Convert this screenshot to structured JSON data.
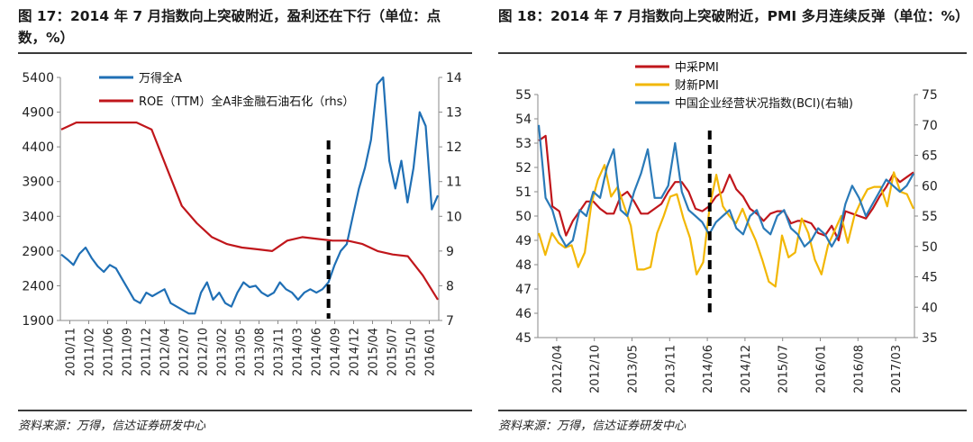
{
  "charts": [
    {
      "figure_title": "图 17：2014 年 7 月指数向上突破附近，盈利还在下行（单位：点数，%）",
      "source": "资料来源：万得，信达证券研发中心"
    },
    {
      "figure_title": "图 18：2014 年 7 月指数向上突破附近，PMI 多月连续反弹（单位：%）",
      "source": "资料来源：万得，信达证券研发中心"
    }
  ],
  "chart_data": [
    {
      "type": "line",
      "x_tick_labels": [
        "2010/11",
        "2011/02",
        "2011/06",
        "2011/09",
        "2011/12",
        "2012/04",
        "2012/07",
        "2012/10",
        "2013/02",
        "2013/05",
        "2013/08",
        "2013/11",
        "2014/03",
        "2014/06",
        "2014/09",
        "2014/12",
        "2015/04",
        "2015/07",
        "2015/10",
        "2016/01"
      ],
      "y_left": {
        "ticks": [
          1900,
          2400,
          2900,
          3400,
          3900,
          4400,
          4900,
          5400
        ],
        "range": [
          1900,
          5400
        ]
      },
      "y_right": {
        "ticks": [
          7,
          8,
          9,
          10,
          11,
          12,
          13,
          14
        ],
        "range": [
          7,
          14
        ]
      },
      "grid": false,
      "legend_position": "top-left",
      "vertical_marker": {
        "x_index": 44,
        "style": "dashed-black"
      },
      "series": [
        {
          "name": "万得全A",
          "axis": "left",
          "color": "#1f6fb5",
          "values": [
            2850,
            2780,
            2700,
            2860,
            2950,
            2800,
            2680,
            2600,
            2700,
            2650,
            2500,
            2350,
            2200,
            2150,
            2300,
            2250,
            2300,
            2350,
            2150,
            2100,
            2050,
            2000,
            2000,
            2300,
            2450,
            2200,
            2300,
            2150,
            2100,
            2300,
            2450,
            2380,
            2400,
            2300,
            2250,
            2300,
            2450,
            2350,
            2300,
            2200,
            2300,
            2350,
            2300,
            2350,
            2450,
            2700,
            2900,
            3000,
            3400,
            3800,
            4100,
            4500,
            5300,
            5400,
            4200,
            3800,
            4200,
            3600,
            4100,
            4900,
            4700,
            3500,
            3700
          ]
        },
        {
          "name": "ROE（TTM）全A非金融石油石化（rhs）",
          "axis": "right",
          "color": "#c0161b",
          "values": [
            12.5,
            12.7,
            12.7,
            12.7,
            12.7,
            12.7,
            12.5,
            11.4,
            10.3,
            9.8,
            9.4,
            9.2,
            9.1,
            9.05,
            9.0,
            9.3,
            9.4,
            9.35,
            9.3,
            9.3,
            9.2,
            9.0,
            8.9,
            8.85,
            8.3,
            7.6
          ]
        }
      ]
    },
    {
      "type": "line",
      "x_tick_labels": [
        "2012/04",
        "2012/10",
        "2013/05",
        "2013/11",
        "2014/06",
        "2014/12",
        "2015/07",
        "2016/01",
        "2016/08",
        "2017/03"
      ],
      "y_left": {
        "ticks": [
          45,
          46,
          47,
          48,
          49,
          50,
          51,
          52,
          53,
          54,
          55
        ],
        "range": [
          45,
          55
        ]
      },
      "y_right": {
        "ticks": [
          35,
          40,
          45,
          50,
          55,
          60,
          65,
          70,
          75
        ],
        "range": [
          35,
          75
        ]
      },
      "grid": false,
      "legend_position": "top",
      "vertical_marker": {
        "x_index": 26,
        "style": "dashed-black"
      },
      "series": [
        {
          "name": "中采PMI",
          "axis": "left",
          "color": "#c0161b",
          "values": [
            53.1,
            53.3,
            50.4,
            50.2,
            49.2,
            49.8,
            50.2,
            50.6,
            50.6,
            50.3,
            50.1,
            50.1,
            50.8,
            51.0,
            50.6,
            50.1,
            50.1,
            50.3,
            50.5,
            51.0,
            51.4,
            51.4,
            51.0,
            50.3,
            50.2,
            50.4,
            50.8,
            51.0,
            51.7,
            51.1,
            50.8,
            50.3,
            50.1,
            49.8,
            50.1,
            50.2,
            50.2,
            49.7,
            49.8,
            49.8,
            49.7,
            49.3,
            49.2,
            49.6,
            49.0,
            50.2,
            50.1,
            50.0,
            49.9,
            50.3,
            50.8,
            51.2,
            51.7,
            51.4,
            51.6,
            51.8
          ]
        },
        {
          "name": "财新PMI",
          "axis": "left",
          "color": "#f2b705",
          "values": [
            49.3,
            48.4,
            49.3,
            48.9,
            48.7,
            48.8,
            47.9,
            48.5,
            50.5,
            51.5,
            52.1,
            50.8,
            51.2,
            50.4,
            49.6,
            47.8,
            47.8,
            47.9,
            49.3,
            50.0,
            50.8,
            50.9,
            49.9,
            49.1,
            47.6,
            48.1,
            50.4,
            51.7,
            50.4,
            50.0,
            49.7,
            50.3,
            49.6,
            49.0,
            48.2,
            47.3,
            47.1,
            49.2,
            48.3,
            48.5,
            49.9,
            49.3,
            48.2,
            47.6,
            48.8,
            49.4,
            50.0,
            48.9,
            50.0,
            50.6,
            51.1,
            51.2,
            51.2,
            50.4,
            51.8,
            51.0,
            50.9,
            50.3
          ]
        },
        {
          "name": "中国企业经营状况指数(BCI)(右轴)",
          "axis": "right",
          "color": "#2a7ab8",
          "values": [
            70,
            58,
            56,
            52,
            50,
            51,
            56,
            55,
            59,
            58,
            63,
            66,
            56,
            55,
            59,
            62,
            66,
            58,
            58,
            60,
            67,
            59,
            56,
            55,
            54,
            52,
            54,
            55,
            56,
            53,
            52,
            55,
            56,
            53,
            52,
            55,
            56,
            53,
            52,
            50,
            51,
            53,
            52,
            50,
            52,
            57,
            60,
            58,
            55,
            57,
            59,
            61,
            60,
            59,
            60,
            62
          ]
        }
      ]
    }
  ]
}
